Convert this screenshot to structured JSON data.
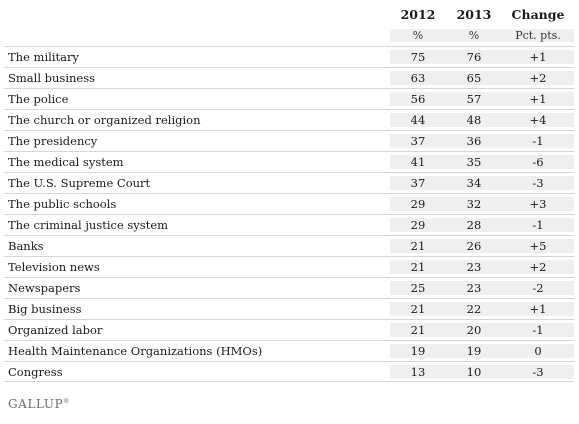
{
  "chart_data": {
    "type": "table",
    "columns": [
      "2012",
      "2013",
      "Change"
    ],
    "units": [
      "%",
      "%",
      "Pct. pts."
    ],
    "rows": [
      {
        "label": "The military",
        "v2012": "75",
        "v2013": "76",
        "change": "+1"
      },
      {
        "label": "Small business",
        "v2012": "63",
        "v2013": "65",
        "change": "+2"
      },
      {
        "label": "The police",
        "v2012": "56",
        "v2013": "57",
        "change": "+1"
      },
      {
        "label": "The church or organized religion",
        "v2012": "44",
        "v2013": "48",
        "change": "+4"
      },
      {
        "label": "The presidency",
        "v2012": "37",
        "v2013": "36",
        "change": "-1"
      },
      {
        "label": "The medical system",
        "v2012": "41",
        "v2013": "35",
        "change": "-6"
      },
      {
        "label": "The U.S. Supreme Court",
        "v2012": "37",
        "v2013": "34",
        "change": "-3"
      },
      {
        "label": "The public schools",
        "v2012": "29",
        "v2013": "32",
        "change": "+3"
      },
      {
        "label": "The criminal justice system",
        "v2012": "29",
        "v2013": "28",
        "change": "-1"
      },
      {
        "label": "Banks",
        "v2012": "21",
        "v2013": "26",
        "change": "+5"
      },
      {
        "label": "Television news",
        "v2012": "21",
        "v2013": "23",
        "change": "+2"
      },
      {
        "label": "Newspapers",
        "v2012": "25",
        "v2013": "23",
        "change": "-2"
      },
      {
        "label": "Big business",
        "v2012": "21",
        "v2013": "22",
        "change": "+1"
      },
      {
        "label": "Organized labor",
        "v2012": "21",
        "v2013": "20",
        "change": "-1"
      },
      {
        "label": "Health Maintenance Organizations (HMOs)",
        "v2012": "19",
        "v2013": "19",
        "change": "0"
      },
      {
        "label": "Congress",
        "v2012": "13",
        "v2013": "10",
        "change": "-3"
      }
    ]
  },
  "footer": {
    "logo_text": "GALLUP",
    "logo_mark": "®"
  }
}
